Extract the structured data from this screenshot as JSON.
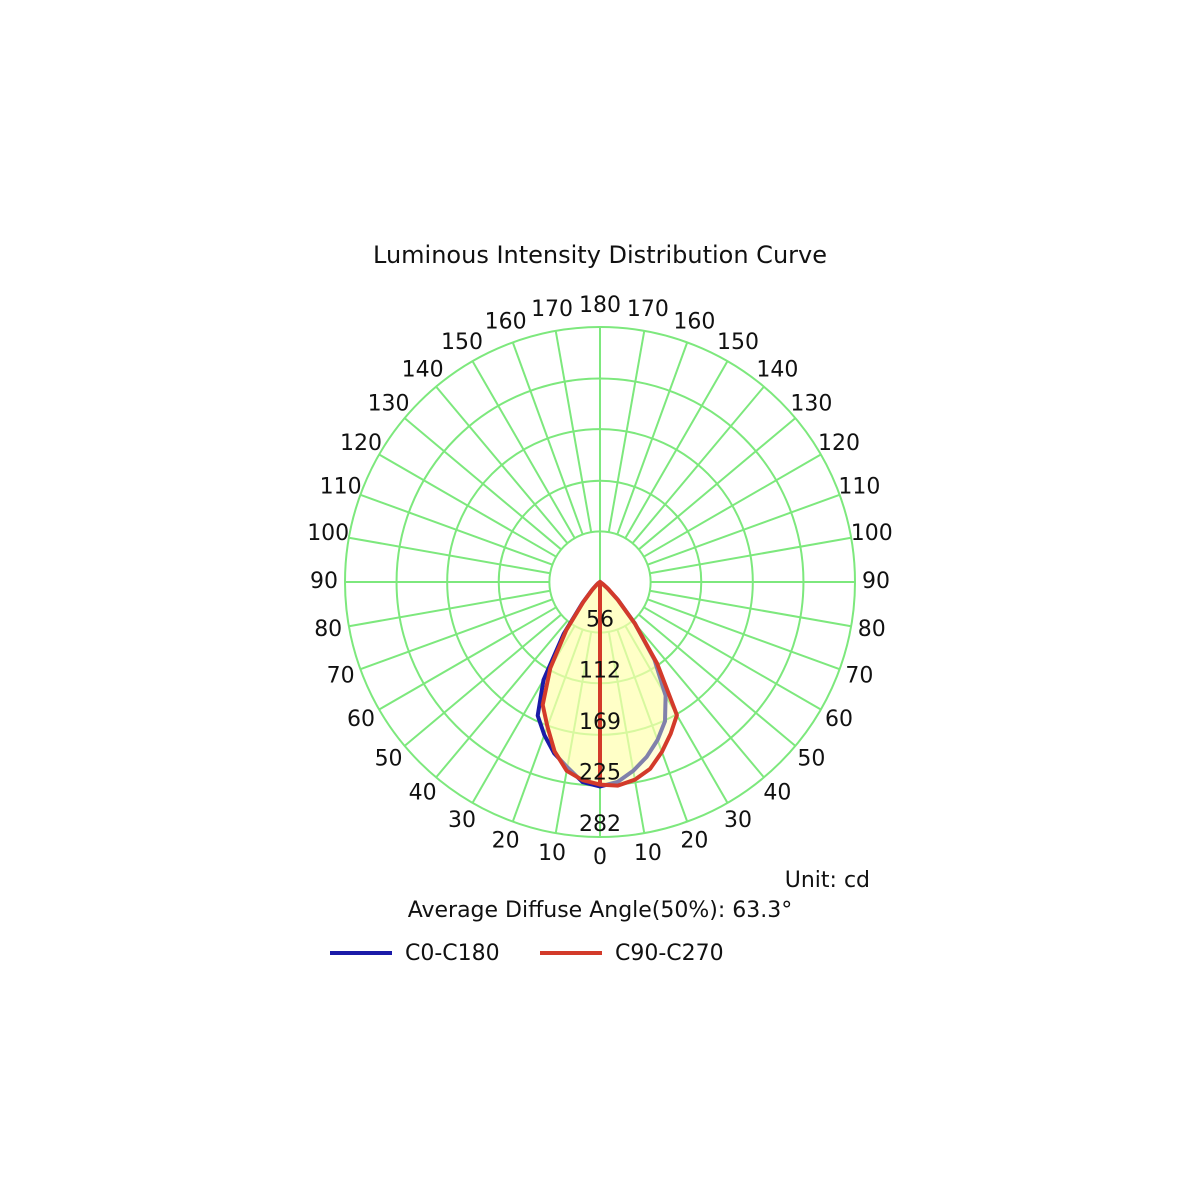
{
  "chart_data": {
    "type": "polar",
    "title": "Luminous Intensity Distribution Curve",
    "unit_label": "Unit: cd",
    "note": "Average Diffuse Angle(50%): 63.3°",
    "rlim": [
      0,
      282
    ],
    "rticks": [
      56,
      112,
      169,
      225,
      282
    ],
    "angle_ticks": [
      0,
      10,
      20,
      30,
      40,
      50,
      60,
      70,
      80,
      90,
      100,
      110,
      120,
      130,
      140,
      150,
      160,
      170,
      180
    ],
    "grid_color": "#7de87d",
    "fill_color": "#ffffb0",
    "x": [
      0,
      5,
      10,
      15,
      20,
      25,
      30,
      35,
      40,
      45,
      50,
      55,
      60
    ],
    "series": [
      {
        "name": "C0-C180",
        "color": "#1a1aa8",
        "values": [
          226,
          222,
          212,
          200,
          186,
          170,
          145,
          105,
          60,
          28,
          10,
          3,
          0
        ],
        "values_opposite": [
          226,
          222,
          208,
          196,
          180,
          163,
          125,
          70,
          30,
          12,
          5,
          2,
          0
        ]
      },
      {
        "name": "C90-C270",
        "color": "#d33a2a",
        "values": [
          224,
          226,
          222,
          214,
          200,
          185,
          170,
          110,
          60,
          28,
          12,
          4,
          0
        ],
        "values_opposite": [
          224,
          220,
          212,
          194,
          170,
          150,
          110,
          65,
          28,
          12,
          5,
          2,
          0
        ]
      }
    ]
  }
}
